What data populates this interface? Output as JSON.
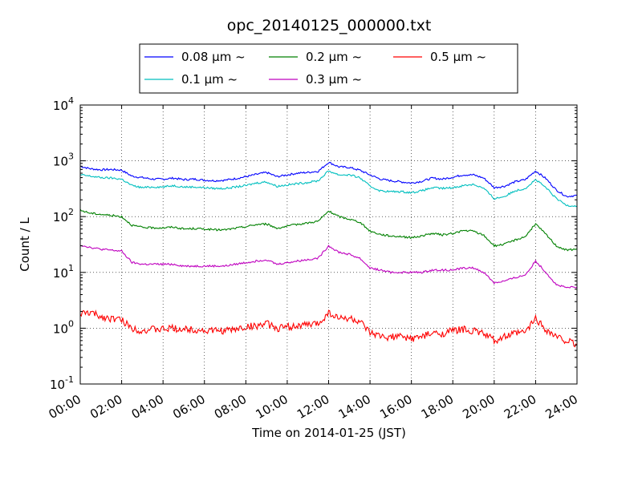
{
  "chart_data": {
    "type": "line",
    "title": "opc_20140125_000000.txt",
    "xlabel": "Time on 2014-01-25 (JST)",
    "ylabel": "Count / L",
    "xlim": [
      0,
      24
    ],
    "ylim": [
      0.1,
      10000
    ],
    "yscale": "log",
    "grid": true,
    "legend_position": "top-center",
    "x_ticks": [
      {
        "value": 0,
        "label": "00:00"
      },
      {
        "value": 2,
        "label": "02:00"
      },
      {
        "value": 4,
        "label": "04:00"
      },
      {
        "value": 6,
        "label": "06:00"
      },
      {
        "value": 8,
        "label": "08:00"
      },
      {
        "value": 10,
        "label": "10:00"
      },
      {
        "value": 12,
        "label": "12:00"
      },
      {
        "value": 14,
        "label": "14:00"
      },
      {
        "value": 16,
        "label": "16:00"
      },
      {
        "value": 18,
        "label": "18:00"
      },
      {
        "value": 20,
        "label": "20:00"
      },
      {
        "value": 22,
        "label": "22:00"
      },
      {
        "value": 24,
        "label": "24:00"
      }
    ],
    "y_ticks": [
      {
        "value": 0.1,
        "label": "10",
        "exp": "-1"
      },
      {
        "value": 1,
        "label": "10",
        "exp": "0"
      },
      {
        "value": 10,
        "label": "10",
        "exp": "1"
      },
      {
        "value": 100,
        "label": "10",
        "exp": "2"
      },
      {
        "value": 1000,
        "label": "10",
        "exp": "3"
      },
      {
        "value": 10000,
        "label": "10",
        "exp": "4"
      }
    ],
    "x_hours": [
      0,
      0.5,
      1,
      1.5,
      2,
      2.5,
      3,
      3.5,
      4,
      4.5,
      5,
      5.5,
      6,
      6.5,
      7,
      7.5,
      8,
      8.5,
      9,
      9.5,
      10,
      10.5,
      11,
      11.5,
      12,
      12.5,
      13,
      13.5,
      14,
      14.5,
      15,
      15.5,
      16,
      16.5,
      17,
      17.5,
      18,
      18.5,
      19,
      19.5,
      20,
      20.5,
      21,
      21.5,
      22,
      22.5,
      23,
      23.5,
      24
    ],
    "series": [
      {
        "name": "0.08 μm ~",
        "color": "#0000ff",
        "values": [
          800,
          720,
          690,
          700,
          680,
          530,
          500,
          470,
          470,
          490,
          460,
          470,
          450,
          440,
          450,
          480,
          520,
          570,
          620,
          520,
          560,
          600,
          620,
          650,
          940,
          780,
          760,
          680,
          560,
          470,
          440,
          420,
          400,
          430,
          490,
          470,
          510,
          560,
          560,
          490,
          330,
          350,
          420,
          460,
          660,
          480,
          300,
          230,
          240
        ]
      },
      {
        "name": "0.1 μm ~",
        "color": "#00bfbf",
        "values": [
          560,
          530,
          500,
          490,
          470,
          360,
          330,
          340,
          340,
          360,
          340,
          340,
          330,
          320,
          320,
          340,
          360,
          400,
          420,
          350,
          370,
          390,
          410,
          440,
          660,
          560,
          560,
          500,
          350,
          290,
          280,
          280,
          270,
          290,
          330,
          320,
          330,
          360,
          380,
          320,
          210,
          230,
          290,
          320,
          460,
          330,
          210,
          160,
          155
        ]
      },
      {
        "name": "0.2 μm ~",
        "color": "#008000",
        "values": [
          130,
          115,
          110,
          105,
          100,
          70,
          64,
          63,
          63,
          65,
          60,
          61,
          60,
          58,
          58,
          62,
          66,
          72,
          74,
          62,
          67,
          73,
          77,
          83,
          125,
          100,
          90,
          80,
          55,
          48,
          45,
          44,
          42,
          45,
          50,
          47,
          50,
          56,
          55,
          46,
          30,
          32,
          38,
          44,
          74,
          48,
          30,
          25,
          26
        ]
      },
      {
        "name": "0.3 μm ~",
        "color": "#bf00bf",
        "values": [
          31,
          28,
          26,
          25,
          24,
          15,
          14,
          14,
          14,
          14,
          13,
          13,
          13,
          13,
          13,
          14,
          15,
          16,
          17,
          14,
          15,
          16,
          17,
          18,
          30,
          23,
          21,
          18,
          12,
          11,
          10,
          10,
          10,
          10,
          11,
          11,
          11,
          12,
          12,
          10,
          6.5,
          7,
          8,
          9,
          16,
          10,
          6,
          5.3,
          5.5
        ]
      },
      {
        "name": "0.5 μm ~",
        "color": "#ff0000",
        "values": [
          1.8,
          1.9,
          1.6,
          1.5,
          1.4,
          1.0,
          0.9,
          0.95,
          0.95,
          1.0,
          0.95,
          0.95,
          0.9,
          0.9,
          0.9,
          0.95,
          1.05,
          1.1,
          1.2,
          1.0,
          1.05,
          1.1,
          1.15,
          1.2,
          1.9,
          1.5,
          1.5,
          1.3,
          0.8,
          0.7,
          0.7,
          0.7,
          0.65,
          0.7,
          0.8,
          0.8,
          0.9,
          0.95,
          0.9,
          0.8,
          0.6,
          0.7,
          0.8,
          0.85,
          1.5,
          0.95,
          0.7,
          0.6,
          0.5
        ]
      }
    ]
  }
}
